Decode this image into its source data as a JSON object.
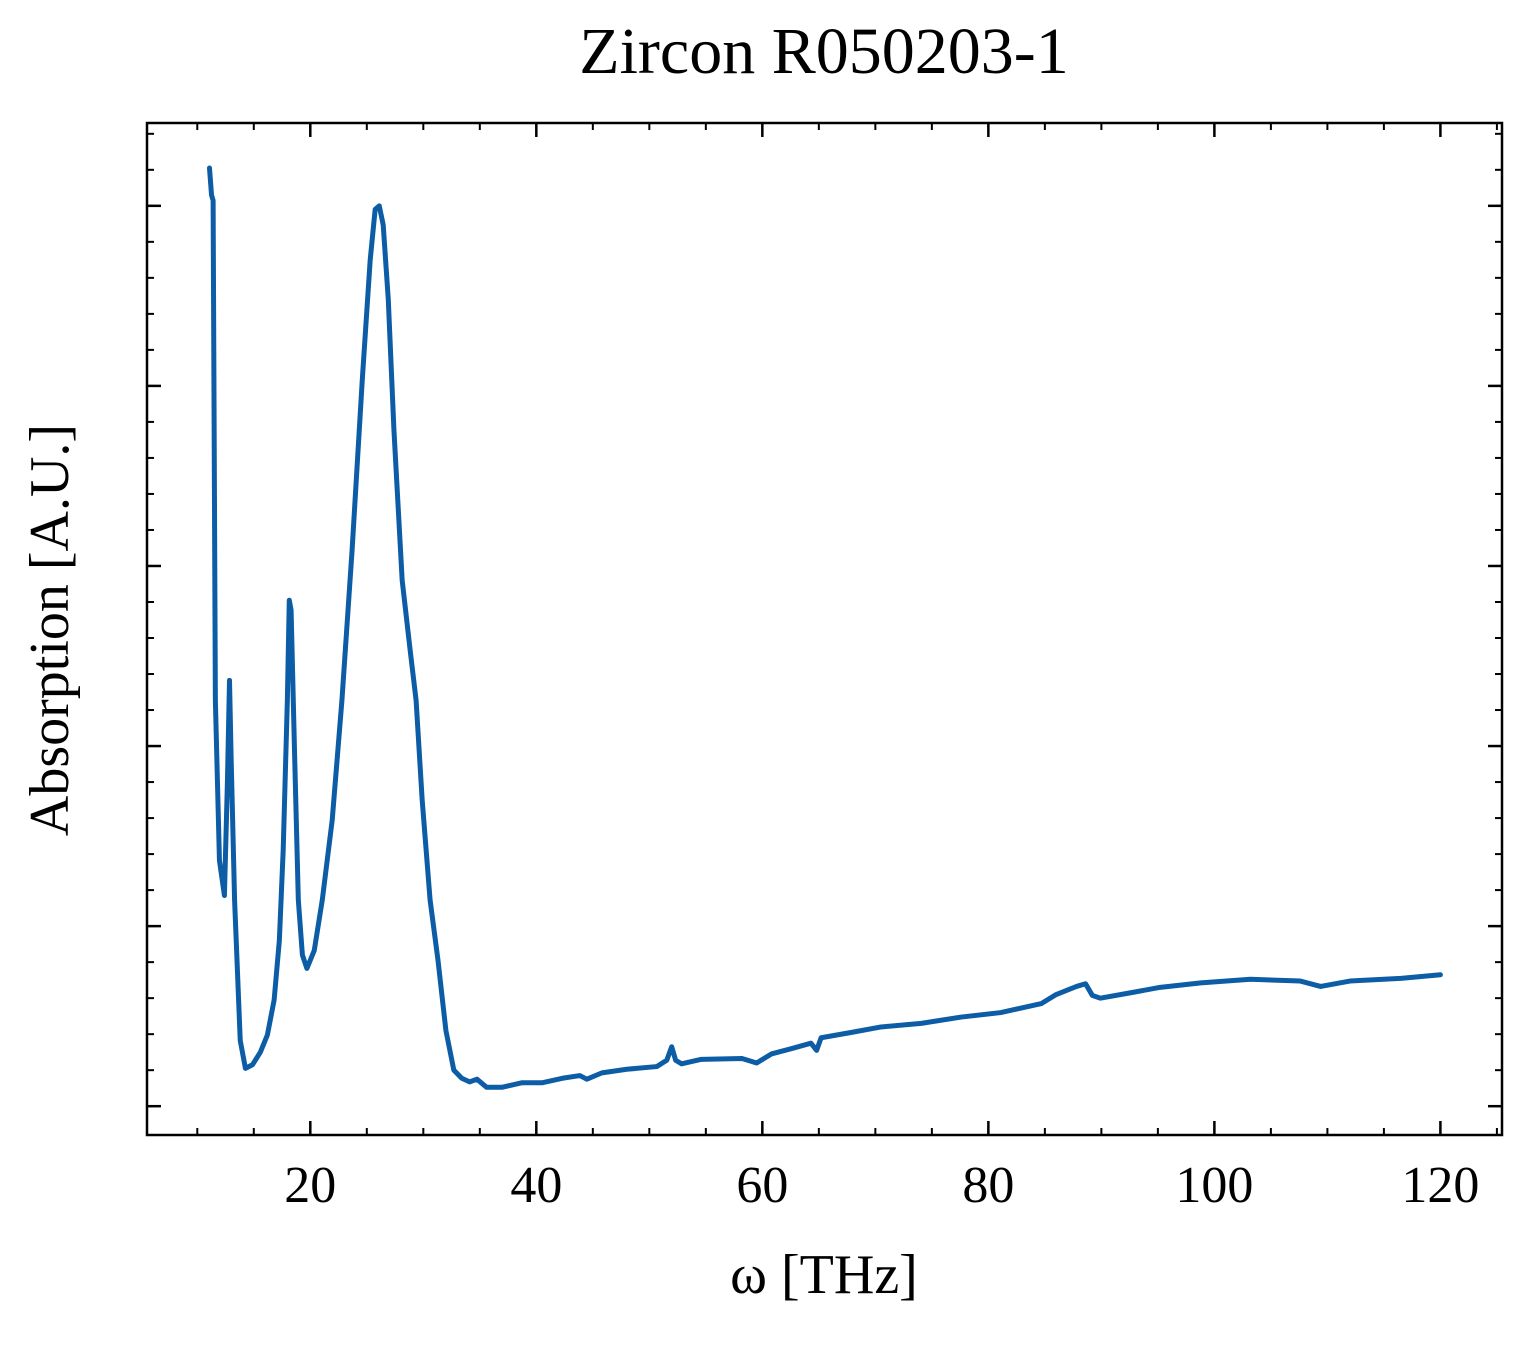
{
  "chart_data": {
    "type": "line",
    "title": "Zircon R050203-1",
    "x_label": "ω [THz]",
    "y_label": "Absorption [A.U.]",
    "xlim": [
      5.55,
      125.45
    ],
    "ylim": [
      -0.032,
      1.092
    ],
    "xticks": [
      20,
      40,
      60,
      80,
      100,
      120
    ],
    "yticks": [
      0,
      0.2,
      0.4,
      0.6,
      0.8,
      1.0
    ],
    "xminor_step": 5,
    "yminor_step": 0.04,
    "ticks_inward": true,
    "mirror_ticks": true,
    "series": [
      {
        "color": "#0C5DA5",
        "x": [
          11.08,
          11.26,
          11.4,
          11.6,
          11.96,
          12.4,
          12.67,
          12.85,
          13.0,
          13.3,
          13.55,
          13.8,
          14.26,
          14.88,
          15.58,
          16.2,
          16.8,
          17.26,
          17.6,
          17.97,
          18.14,
          18.3,
          18.6,
          18.94,
          19.3,
          19.7,
          20.35,
          21.06,
          21.94,
          22.8,
          23.7,
          24.6,
          25.3,
          25.74,
          26.1,
          26.45,
          26.9,
          27.4,
          28.13,
          28.83,
          29.36,
          29.9,
          30.6,
          31.3,
          32.0,
          32.7,
          33.4,
          34.1,
          34.75,
          35.6,
          36.96,
          38.7,
          40.5,
          42.3,
          43.85,
          44.47,
          45.8,
          48.0,
          50.65,
          51.54,
          51.98,
          52.33,
          52.86,
          54.6,
          58.2,
          59.5,
          60.8,
          62.6,
          64.3,
          64.8,
          65.2,
          67.9,
          70.5,
          74.06,
          77.6,
          81.1,
          84.7,
          86.0,
          87.8,
          88.6,
          89.2,
          89.9,
          92.6,
          95.2,
          98.8,
          103.2,
          107.6,
          109.4,
          112.0,
          116.5,
          120.0
        ],
        "values": [
          1.042,
          1.012,
          1.006,
          0.451,
          0.273,
          0.234,
          0.362,
          0.473,
          0.384,
          0.229,
          0.151,
          0.073,
          0.042,
          0.046,
          0.06,
          0.079,
          0.118,
          0.184,
          0.284,
          0.451,
          0.562,
          0.551,
          0.396,
          0.229,
          0.168,
          0.153,
          0.173,
          0.229,
          0.318,
          0.451,
          0.618,
          0.807,
          0.94,
          0.996,
          1.0,
          0.979,
          0.896,
          0.751,
          0.584,
          0.507,
          0.451,
          0.34,
          0.229,
          0.162,
          0.084,
          0.04,
          0.031,
          0.027,
          0.03,
          0.021,
          0.021,
          0.026,
          0.026,
          0.031,
          0.034,
          0.03,
          0.037,
          0.041,
          0.044,
          0.051,
          0.066,
          0.051,
          0.047,
          0.052,
          0.053,
          0.048,
          0.058,
          0.064,
          0.07,
          0.062,
          0.076,
          0.082,
          0.088,
          0.092,
          0.099,
          0.104,
          0.114,
          0.124,
          0.133,
          0.136,
          0.123,
          0.12,
          0.126,
          0.132,
          0.137,
          0.141,
          0.139,
          0.133,
          0.139,
          0.142,
          0.146
        ]
      }
    ]
  }
}
